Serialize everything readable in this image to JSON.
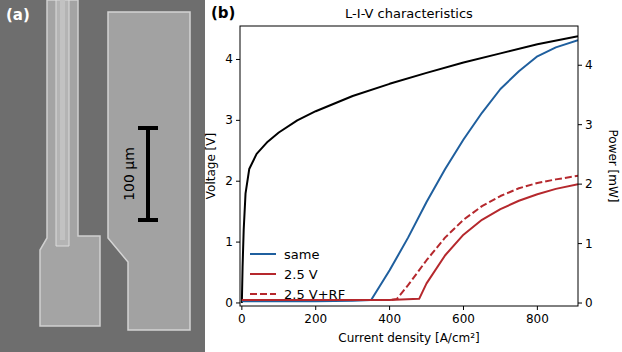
{
  "panel_a": {
    "label": "(a)",
    "scale_bar": "100 µm"
  },
  "chart_data": {
    "type": "line",
    "panel_label": "(b)",
    "title": "L-I-V characteristics",
    "x_label": "Current density [A/cm²]",
    "y_label": "Voltage [V]",
    "y2_label": "Power [mW]",
    "xlim": [
      -5,
      910
    ],
    "xticks": [
      0,
      200,
      400,
      600,
      800
    ],
    "ylim": [
      -0.05,
      4.55
    ],
    "yticks": [
      0,
      1,
      2,
      3,
      4
    ],
    "y2lim": [
      -0.05,
      4.66
    ],
    "y2ticks": [
      0,
      1,
      2,
      3,
      4
    ],
    "legend": "lower left",
    "series": [
      {
        "color": "#000000",
        "line_style": "solid",
        "x": [
          0,
          2,
          5,
          10,
          20,
          40,
          70,
          100,
          150,
          200,
          300,
          400,
          500,
          600,
          700,
          800,
          910
        ],
        "values": [
          0,
          0.6,
          1.2,
          1.8,
          2.2,
          2.45,
          2.65,
          2.8,
          3.0,
          3.15,
          3.4,
          3.6,
          3.78,
          3.95,
          4.1,
          4.25,
          4.38
        ]
      },
      {
        "name": "same",
        "color": "#1f5f9e",
        "line_style": "solid",
        "axis": "y2",
        "x": [
          0,
          100,
          200,
          300,
          350,
          400,
          450,
          500,
          550,
          600,
          650,
          700,
          750,
          800,
          850,
          910
        ],
        "values": [
          0.03,
          0.03,
          0.03,
          0.04,
          0.05,
          0.55,
          1.1,
          1.7,
          2.25,
          2.75,
          3.2,
          3.6,
          3.9,
          4.15,
          4.3,
          4.42
        ]
      },
      {
        "name": "2.5 V",
        "color": "#b5282d",
        "line_style": "solid",
        "axis": "y2",
        "x": [
          0,
          100,
          200,
          300,
          400,
          480,
          490,
          500,
          550,
          600,
          650,
          700,
          750,
          800,
          850,
          910
        ],
        "values": [
          0.05,
          0.05,
          0.05,
          0.05,
          0.05,
          0.07,
          0.2,
          0.33,
          0.8,
          1.15,
          1.4,
          1.58,
          1.72,
          1.83,
          1.92,
          2.0
        ]
      },
      {
        "name": "2.5 V+RF",
        "color": "#b5282d",
        "line_style": "dashed",
        "axis": "y2",
        "x": [
          0,
          100,
          200,
          300,
          400,
          420,
          450,
          500,
          550,
          600,
          650,
          700,
          750,
          800,
          850,
          910
        ],
        "values": [
          0.05,
          0.05,
          0.05,
          0.05,
          0.05,
          0.07,
          0.3,
          0.72,
          1.1,
          1.4,
          1.63,
          1.8,
          1.93,
          2.02,
          2.08,
          2.14
        ]
      }
    ]
  }
}
